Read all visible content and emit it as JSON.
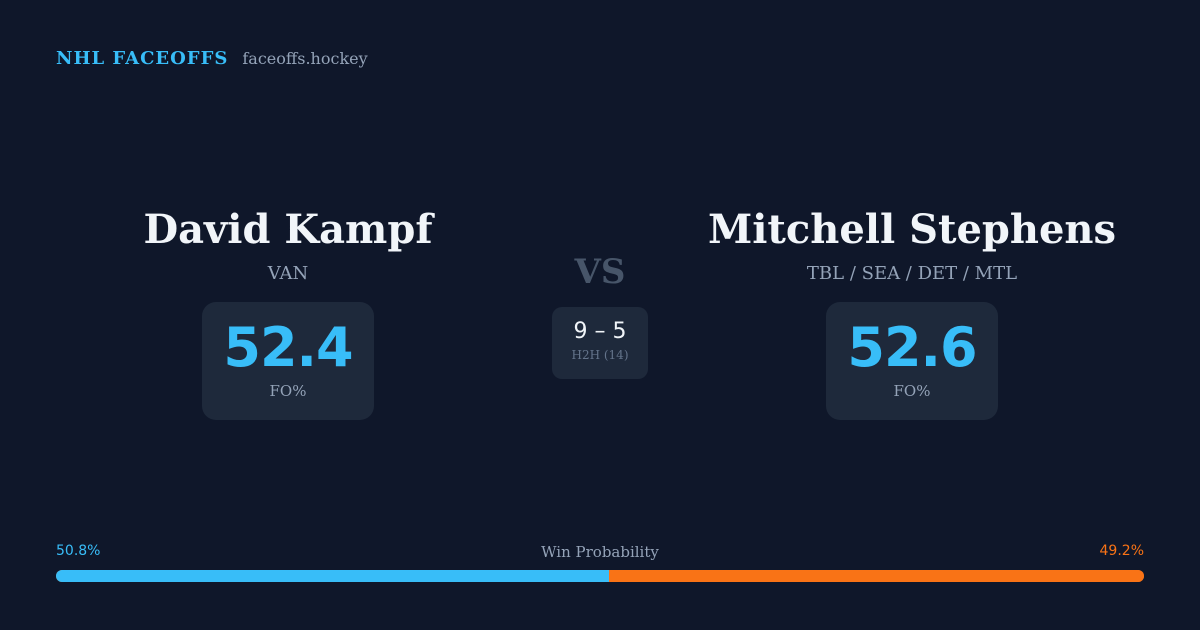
{
  "brand": {
    "name": "NHL FACEOFFS",
    "site": "faceoffs.hockey"
  },
  "players": {
    "left": {
      "name": "David Kampf",
      "team": "VAN",
      "fo_value": "52.4",
      "fo_label": "FO%"
    },
    "right": {
      "name": "Mitchell Stephens",
      "team": "TBL / SEA / DET / MTL",
      "fo_value": "52.6",
      "fo_label": "FO%"
    }
  },
  "matchup": {
    "vs": "VS",
    "h2h_score": "9 – 5",
    "h2h_label": "H2H (14)"
  },
  "win_probability": {
    "title": "Win Probability",
    "left_label": "50.8%",
    "right_label": "49.2%",
    "left_value": 50.8,
    "right_value": 49.2
  },
  "colors": {
    "background": "#0f172a",
    "card": "#1e293b",
    "accent_blue": "#38bdf8",
    "accent_orange": "#f97316",
    "muted": "#94a3b8"
  }
}
